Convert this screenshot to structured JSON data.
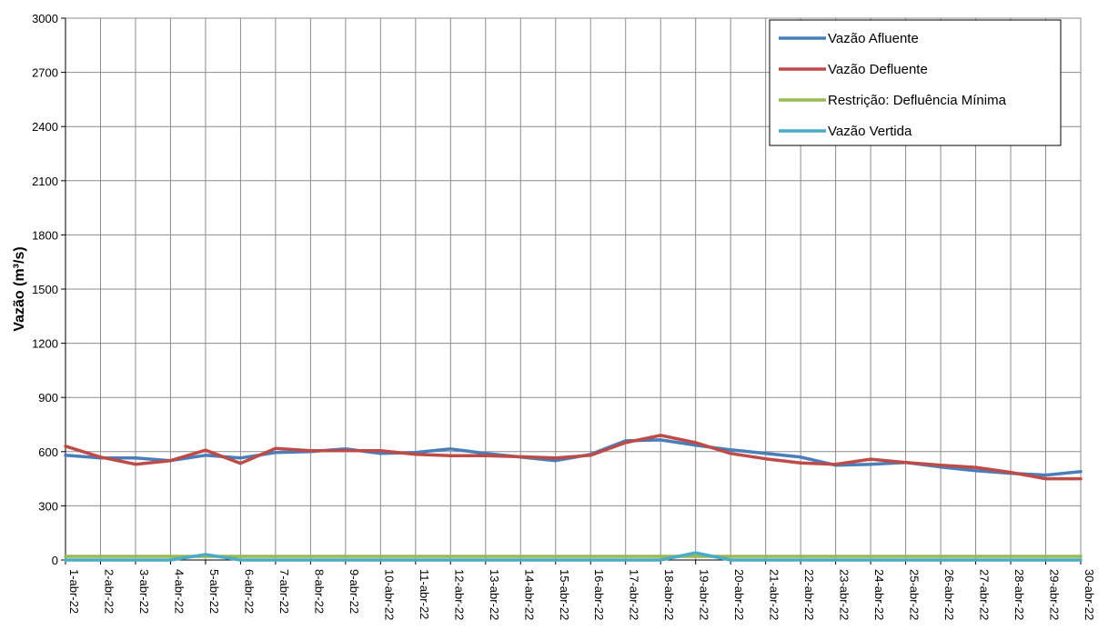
{
  "chart_data": {
    "type": "line",
    "ylabel": "Vazão (m³/s)",
    "xlabel": "",
    "title": "",
    "ylim": [
      0,
      3000
    ],
    "yticks": [
      0,
      300,
      600,
      900,
      1200,
      1500,
      1800,
      2100,
      2400,
      2700,
      3000
    ],
    "grid": true,
    "legend_position": "top-right",
    "categories": [
      "1-abr-22",
      "2-abr-22",
      "3-abr-22",
      "4-abr-22",
      "5-abr-22",
      "6-abr-22",
      "7-abr-22",
      "8-abr-22",
      "9-abr-22",
      "10-abr-22",
      "11-abr-22",
      "12-abr-22",
      "13-abr-22",
      "14-abr-22",
      "15-abr-22",
      "16-abr-22",
      "17-abr-22",
      "18-abr-22",
      "19-abr-22",
      "20-abr-22",
      "21-abr-22",
      "22-abr-22",
      "23-abr-22",
      "24-abr-22",
      "25-abr-22",
      "26-abr-22",
      "27-abr-22",
      "28-abr-22",
      "29-abr-22",
      "30-abr-22"
    ],
    "series": [
      {
        "name": "Vazão Afluente",
        "color": "#4a7ebb",
        "values": [
          580,
          565,
          565,
          550,
          580,
          565,
          595,
          600,
          615,
          590,
          595,
          615,
          590,
          570,
          550,
          585,
          660,
          665,
          635,
          610,
          590,
          570,
          525,
          530,
          540,
          515,
          495,
          480,
          470,
          490
        ]
      },
      {
        "name": "Vazão Defluente",
        "color": "#be4b48",
        "values": [
          630,
          570,
          530,
          550,
          608,
          535,
          618,
          605,
          605,
          605,
          585,
          578,
          578,
          572,
          565,
          580,
          650,
          690,
          650,
          590,
          560,
          537,
          530,
          558,
          540,
          525,
          513,
          485,
          450,
          450
        ]
      },
      {
        "name": "Restrição: Defluência Mínima",
        "color": "#98b954",
        "values": [
          20,
          20,
          20,
          20,
          20,
          20,
          20,
          20,
          20,
          20,
          20,
          20,
          20,
          20,
          20,
          20,
          20,
          20,
          20,
          20,
          20,
          20,
          20,
          20,
          20,
          20,
          20,
          20,
          20,
          20
        ]
      },
      {
        "name": "Vazão Vertida",
        "color": "#4bacc6",
        "values": [
          0,
          0,
          0,
          0,
          30,
          0,
          0,
          0,
          0,
          0,
          0,
          0,
          0,
          0,
          0,
          0,
          0,
          0,
          40,
          0,
          0,
          0,
          0,
          0,
          0,
          0,
          0,
          0,
          0,
          0
        ]
      }
    ]
  }
}
